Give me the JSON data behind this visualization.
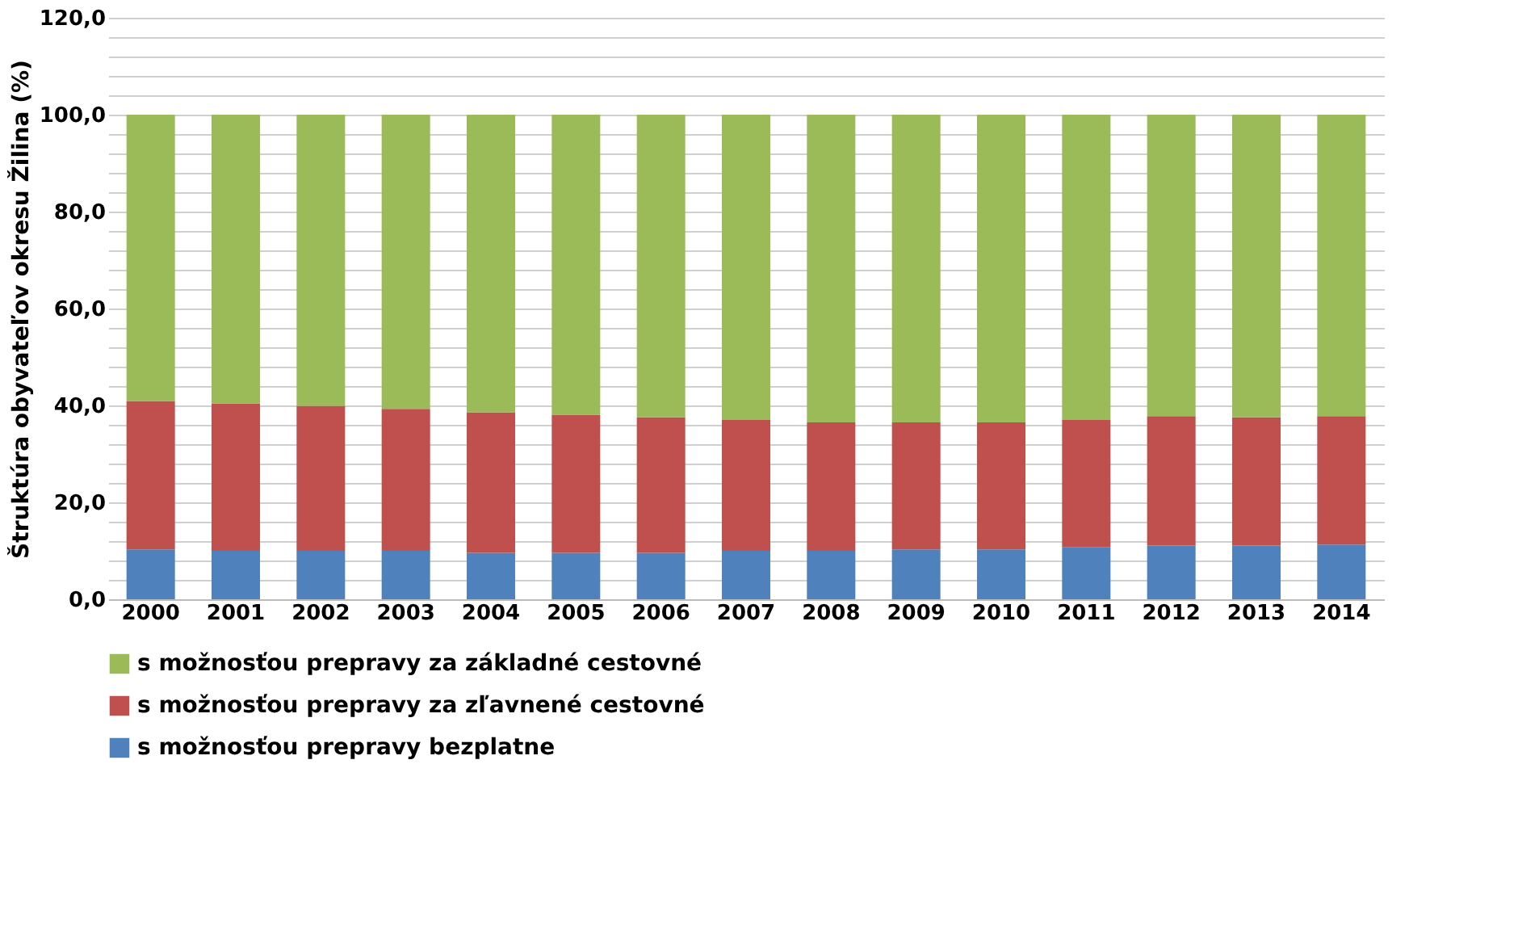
{
  "chart_data": {
    "type": "bar",
    "stacked": true,
    "ylabel": "Štruktúra obyvateľov okresu Žilina (%)",
    "categories": [
      "2000",
      "2001",
      "2002",
      "2003",
      "2004",
      "2005",
      "2006",
      "2007",
      "2008",
      "2009",
      "2010",
      "2011",
      "2012",
      "2013",
      "2014"
    ],
    "series": [
      {
        "name": "s možnosťou prepravy bezplatne",
        "color": "#4f81bd",
        "values": [
          10.3,
          10.0,
          10.0,
          10.0,
          9.6,
          9.6,
          9.6,
          10.0,
          10.0,
          10.3,
          10.3,
          10.8,
          11.1,
          11.1,
          11.3
        ]
      },
      {
        "name": "s možnosťou prepravy za zľavnené cestovné",
        "color": "#c0504d",
        "values": [
          30.6,
          30.4,
          29.9,
          29.3,
          29.0,
          28.5,
          28.0,
          27.0,
          26.5,
          26.2,
          26.2,
          26.2,
          26.7,
          26.5,
          26.5
        ]
      },
      {
        "name": "s možnosťou prepravy za základné cestovné",
        "color": "#9bbb59",
        "values": [
          59.1,
          59.6,
          60.1,
          60.7,
          61.4,
          61.9,
          62.4,
          63.0,
          63.5,
          63.5,
          63.5,
          63.0,
          62.2,
          62.4,
          62.2
        ]
      }
    ],
    "ylim": [
      0,
      120
    ],
    "yticks": [
      {
        "value": 0,
        "label": "0,0"
      },
      {
        "value": 4,
        "label": null
      },
      {
        "value": 8,
        "label": null
      },
      {
        "value": 12,
        "label": null
      },
      {
        "value": 16,
        "label": null
      },
      {
        "value": 20,
        "label": "20,0"
      },
      {
        "value": 24,
        "label": null
      },
      {
        "value": 28,
        "label": null
      },
      {
        "value": 32,
        "label": null
      },
      {
        "value": 36,
        "label": null
      },
      {
        "value": 40,
        "label": "40,0"
      },
      {
        "value": 44,
        "label": null
      },
      {
        "value": 48,
        "label": null
      },
      {
        "value": 52,
        "label": null
      },
      {
        "value": 56,
        "label": null
      },
      {
        "value": 60,
        "label": "60,0"
      },
      {
        "value": 64,
        "label": null
      },
      {
        "value": 68,
        "label": null
      },
      {
        "value": 72,
        "label": null
      },
      {
        "value": 76,
        "label": null
      },
      {
        "value": 80,
        "label": "80,0"
      },
      {
        "value": 84,
        "label": null
      },
      {
        "value": 88,
        "label": null
      },
      {
        "value": 92,
        "label": null
      },
      {
        "value": 96,
        "label": null
      },
      {
        "value": 100,
        "label": "100,0"
      },
      {
        "value": 104,
        "label": null
      },
      {
        "value": 108,
        "label": null
      },
      {
        "value": 112,
        "label": null
      },
      {
        "value": 116,
        "label": null
      },
      {
        "value": 120,
        "label": "120,0"
      }
    ],
    "grid": "y",
    "legend": "bottom"
  }
}
